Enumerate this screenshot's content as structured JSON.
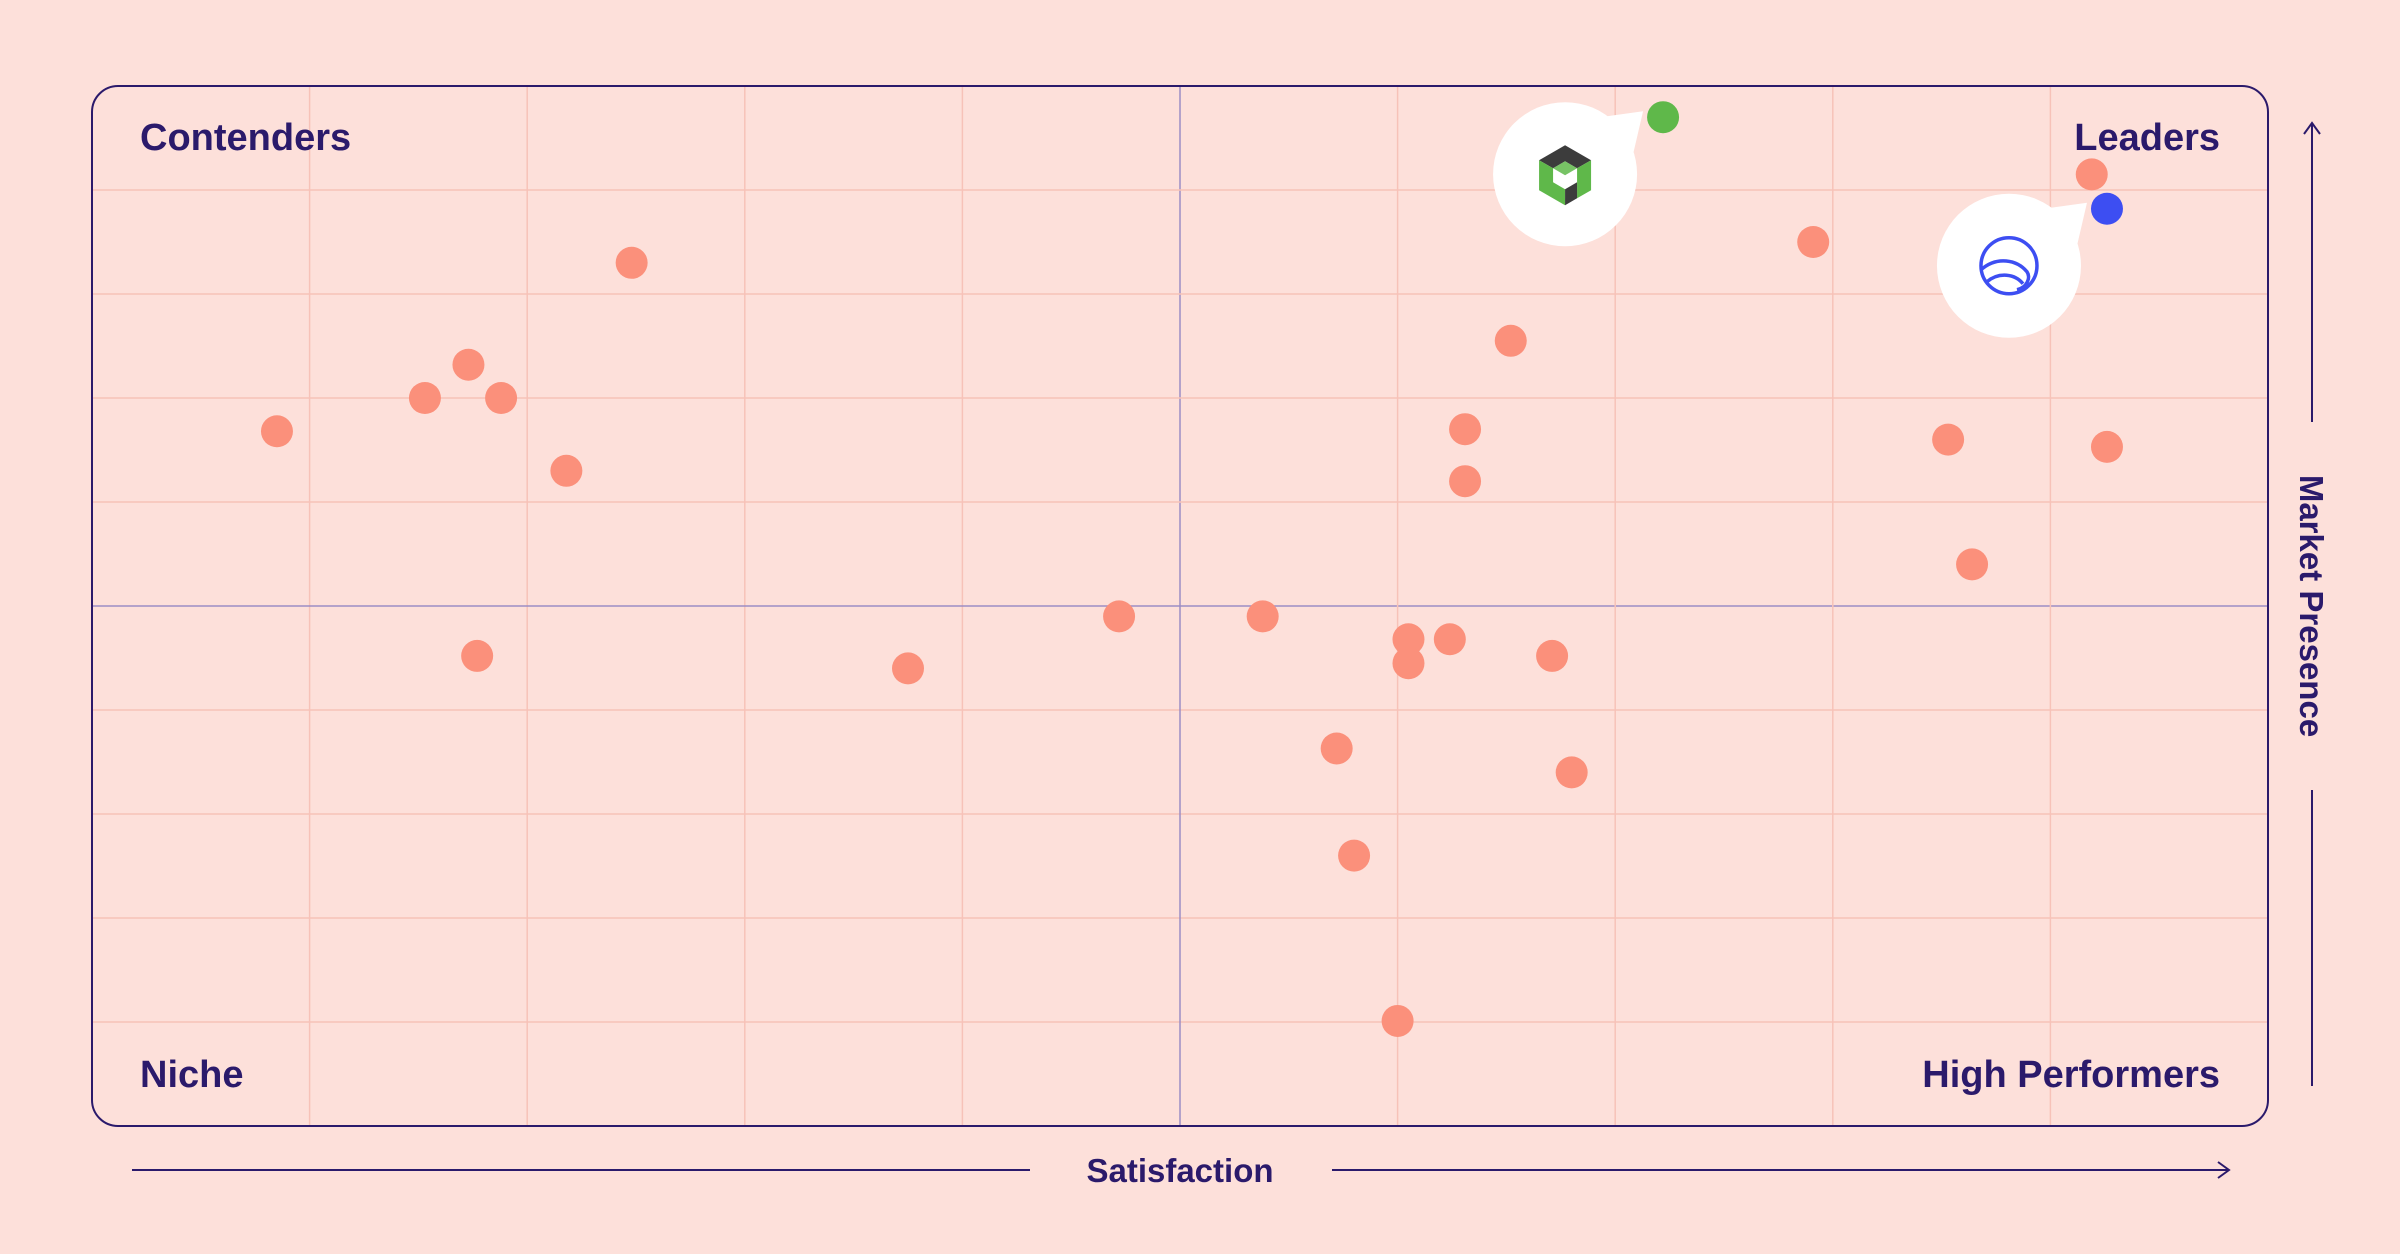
{
  "chart_data": {
    "type": "scatter",
    "xlabel": "Satisfaction",
    "ylabel": "Market Presence",
    "xlim": [
      0,
      10
    ],
    "ylim": [
      0,
      10
    ],
    "grid": true,
    "quadrants": {
      "top_left": "Contenders",
      "top_right": "Leaders",
      "bottom_left": "Niche",
      "bottom_right": "High Performers"
    },
    "colors": {
      "background": "#fde0da",
      "frame": "#2b1a6b",
      "grid": "#f7c2b8",
      "point": "#fb907b",
      "highlight_green": "#5fb84a",
      "highlight_blue": "#3d4ef2",
      "text": "#2b1a6b"
    },
    "series": [
      {
        "color": "#fb907b",
        "points": [
          {
            "x": 0.85,
            "y": 6.68
          },
          {
            "x": 1.53,
            "y": 7.0
          },
          {
            "x": 1.73,
            "y": 7.32
          },
          {
            "x": 1.88,
            "y": 7.0
          },
          {
            "x": 2.18,
            "y": 6.3
          },
          {
            "x": 2.48,
            "y": 8.3
          },
          {
            "x": 1.77,
            "y": 4.52
          },
          {
            "x": 3.75,
            "y": 4.4
          },
          {
            "x": 4.72,
            "y": 4.9
          },
          {
            "x": 5.38,
            "y": 4.9
          },
          {
            "x": 5.72,
            "y": 3.63
          },
          {
            "x": 5.8,
            "y": 2.6
          },
          {
            "x": 6.0,
            "y": 1.01
          },
          {
            "x": 6.05,
            "y": 4.68
          },
          {
            "x": 6.05,
            "y": 4.45
          },
          {
            "x": 6.24,
            "y": 4.68
          },
          {
            "x": 6.31,
            "y": 6.2
          },
          {
            "x": 6.31,
            "y": 6.7
          },
          {
            "x": 6.52,
            "y": 7.55
          },
          {
            "x": 6.71,
            "y": 4.52
          },
          {
            "x": 6.8,
            "y": 3.4
          },
          {
            "x": 7.91,
            "y": 8.5
          },
          {
            "x": 8.53,
            "y": 6.6
          },
          {
            "x": 8.64,
            "y": 5.4
          },
          {
            "x": 9.19,
            "y": 9.15
          },
          {
            "x": 9.26,
            "y": 6.53
          }
        ]
      },
      {
        "color": "#5fb84a",
        "icon": "hexagon-logo-icon",
        "points": [
          {
            "x": 7.22,
            "y": 9.7
          }
        ]
      },
      {
        "color": "#3d4ef2",
        "icon": "globe-wave-logo-icon",
        "points": [
          {
            "x": 9.26,
            "y": 8.82
          }
        ]
      }
    ]
  }
}
